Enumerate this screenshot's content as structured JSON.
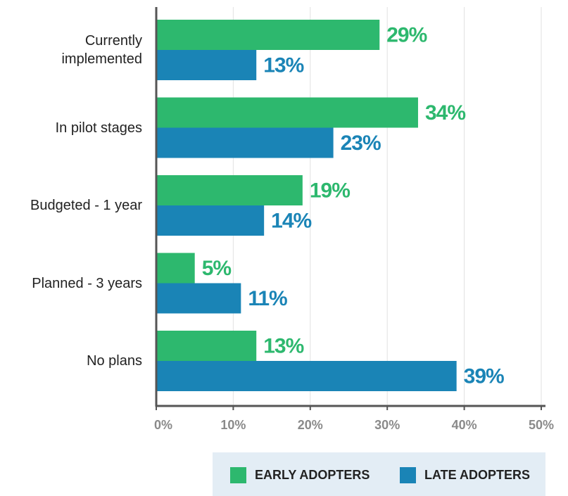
{
  "chart_data": {
    "type": "bar",
    "orientation": "horizontal",
    "categories": [
      "Currently implemented",
      "In pilot stages",
      "Budgeted - 1 year",
      "Planned - 3 years",
      "No plans"
    ],
    "series": [
      {
        "name": "EARLY ADOPTERS",
        "color": "#2db86e",
        "values": [
          29,
          34,
          19,
          5,
          13
        ],
        "value_labels": [
          "29%",
          "34%",
          "19%",
          "5%",
          "13%"
        ]
      },
      {
        "name": "LATE ADOPTERS",
        "color": "#1a84b6",
        "values": [
          13,
          23,
          14,
          11,
          39
        ],
        "value_labels": [
          "13%",
          "23%",
          "14%",
          "11%",
          "39%"
        ]
      }
    ],
    "xlim": [
      0,
      50
    ],
    "xticks": [
      {
        "value": 0,
        "label": "0%"
      },
      {
        "value": 10,
        "label": "10%"
      },
      {
        "value": 20,
        "label": "20%"
      },
      {
        "value": 30,
        "label": "30%"
      },
      {
        "value": 40,
        "label": "40%"
      },
      {
        "value": 50,
        "label": "50%"
      }
    ],
    "grid": true,
    "legend": "bottom"
  }
}
